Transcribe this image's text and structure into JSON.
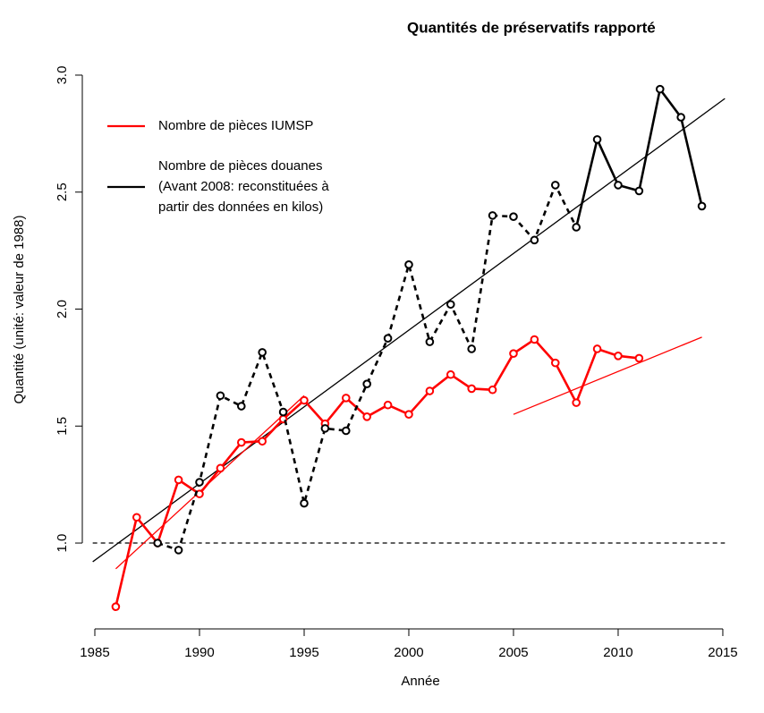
{
  "chart_data": {
    "type": "line",
    "title": "Quantités de préservatifs rapporté",
    "xlabel": "Année",
    "ylabel": "Quantité (unité: valeur de 1988)",
    "xlim": [
      1984.9,
      2015.1
    ],
    "ylim": [
      0.63,
      3.05
    ],
    "xticks": [
      1985,
      1990,
      1995,
      2000,
      2005,
      2010,
      2015
    ],
    "yticks": [
      {
        "value": 1,
        "label": "1.0"
      },
      {
        "value": 1.5,
        "label": "1.5"
      },
      {
        "value": 2,
        "label": "2.0"
      },
      {
        "value": 2.5,
        "label": "2.5"
      },
      {
        "value": 3,
        "label": "3.0"
      }
    ],
    "hline": 1,
    "legend": "top-left",
    "series": [
      {
        "name": "Nombre de pièces IUMSP",
        "color": "#ff0000",
        "x": [
          1986,
          1987,
          1988,
          1989,
          1990,
          1991,
          1992,
          1993,
          1994,
          1995,
          1996,
          1997,
          1998,
          1999,
          2000,
          2001,
          2002,
          2003,
          2004,
          2005,
          2006,
          2007,
          2008,
          2009,
          2010,
          2011
        ],
        "values": [
          0.728,
          1.11,
          1.0,
          1.27,
          1.21,
          1.32,
          1.43,
          1.435,
          1.53,
          1.61,
          1.51,
          1.62,
          1.54,
          1.59,
          1.55,
          1.65,
          1.72,
          1.66,
          1.655,
          1.81,
          1.87,
          1.77,
          1.6,
          1.83,
          1.8,
          1.79
        ]
      },
      {
        "name": "Nombre de pièces douanes\n(Avant 2008: reconstituées à\npartir des données en kilos)",
        "color": "#000000",
        "dashed_before": 2008,
        "x": [
          1988,
          1989,
          1990,
          1991,
          1992,
          1993,
          1994,
          1995,
          1996,
          1997,
          1998,
          1999,
          2000,
          2001,
          2002,
          2003,
          2004,
          2005,
          2006,
          2007,
          2008,
          2009,
          2010,
          2011,
          2012,
          2013,
          2014
        ],
        "values": [
          1.0,
          0.97,
          1.26,
          1.63,
          1.585,
          1.815,
          1.56,
          1.17,
          1.49,
          1.48,
          1.68,
          1.875,
          2.19,
          1.86,
          2.02,
          1.83,
          2.4,
          2.395,
          2.295,
          2.53,
          2.35,
          2.725,
          2.53,
          2.505,
          2.94,
          2.82,
          2.44
        ]
      }
    ],
    "trends": [
      {
        "color": "#000000",
        "x": [
          1984.9,
          2015.1
        ],
        "values": [
          0.92,
          2.9
        ]
      },
      {
        "color": "#ff0000",
        "x": [
          1986,
          1995,
          1996,
          2005,
          2014
        ],
        "values": [
          0.89,
          1.63,
          null,
          1.55,
          1.88
        ]
      }
    ]
  }
}
